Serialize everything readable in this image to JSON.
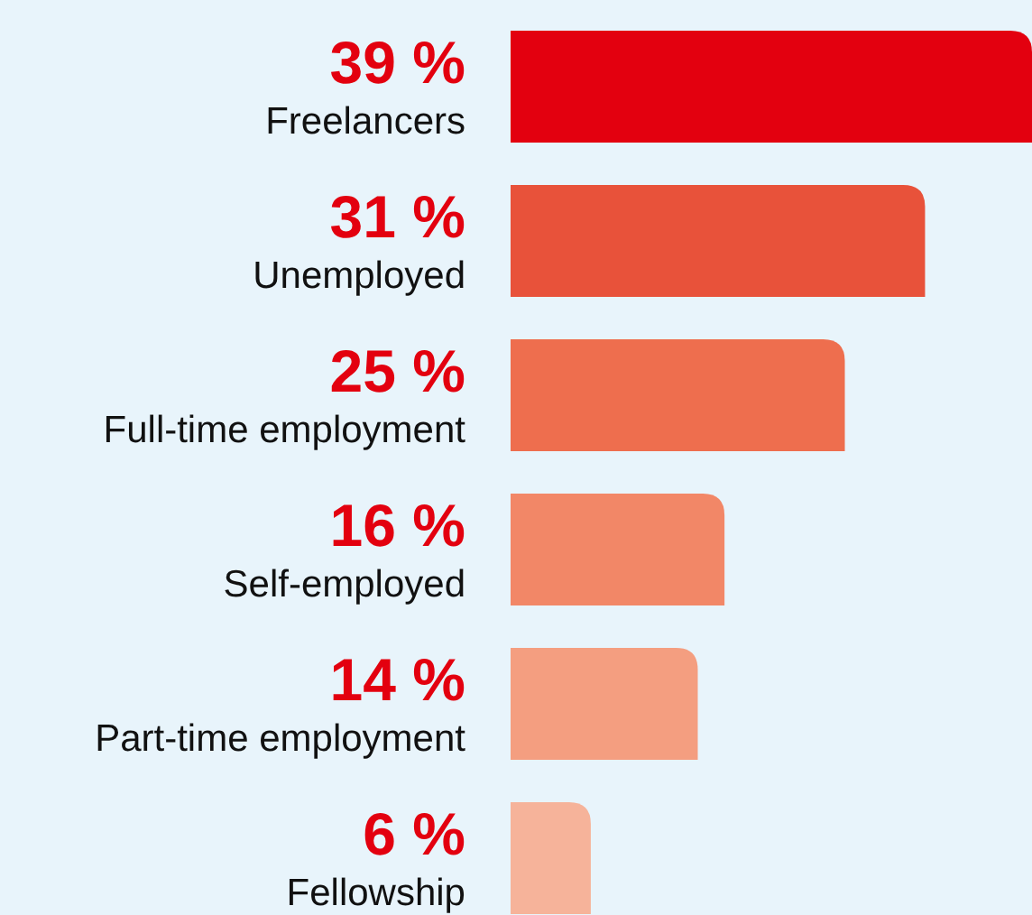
{
  "chart_data": {
    "type": "bar",
    "orientation": "horizontal",
    "categories": [
      "Freelancers",
      "Unemployed",
      "Full-time employment",
      "Self-employed",
      "Part-time employment",
      "Fellowship"
    ],
    "values": [
      39,
      31,
      25,
      16,
      14,
      6
    ],
    "value_labels": [
      "39 %",
      "31 %",
      "25 %",
      "16 %",
      "14 %",
      "6 %"
    ],
    "colors": [
      "#e3000f",
      "#e8523a",
      "#ee6e4e",
      "#f28767",
      "#f49e80",
      "#f6b39a"
    ]
  }
}
